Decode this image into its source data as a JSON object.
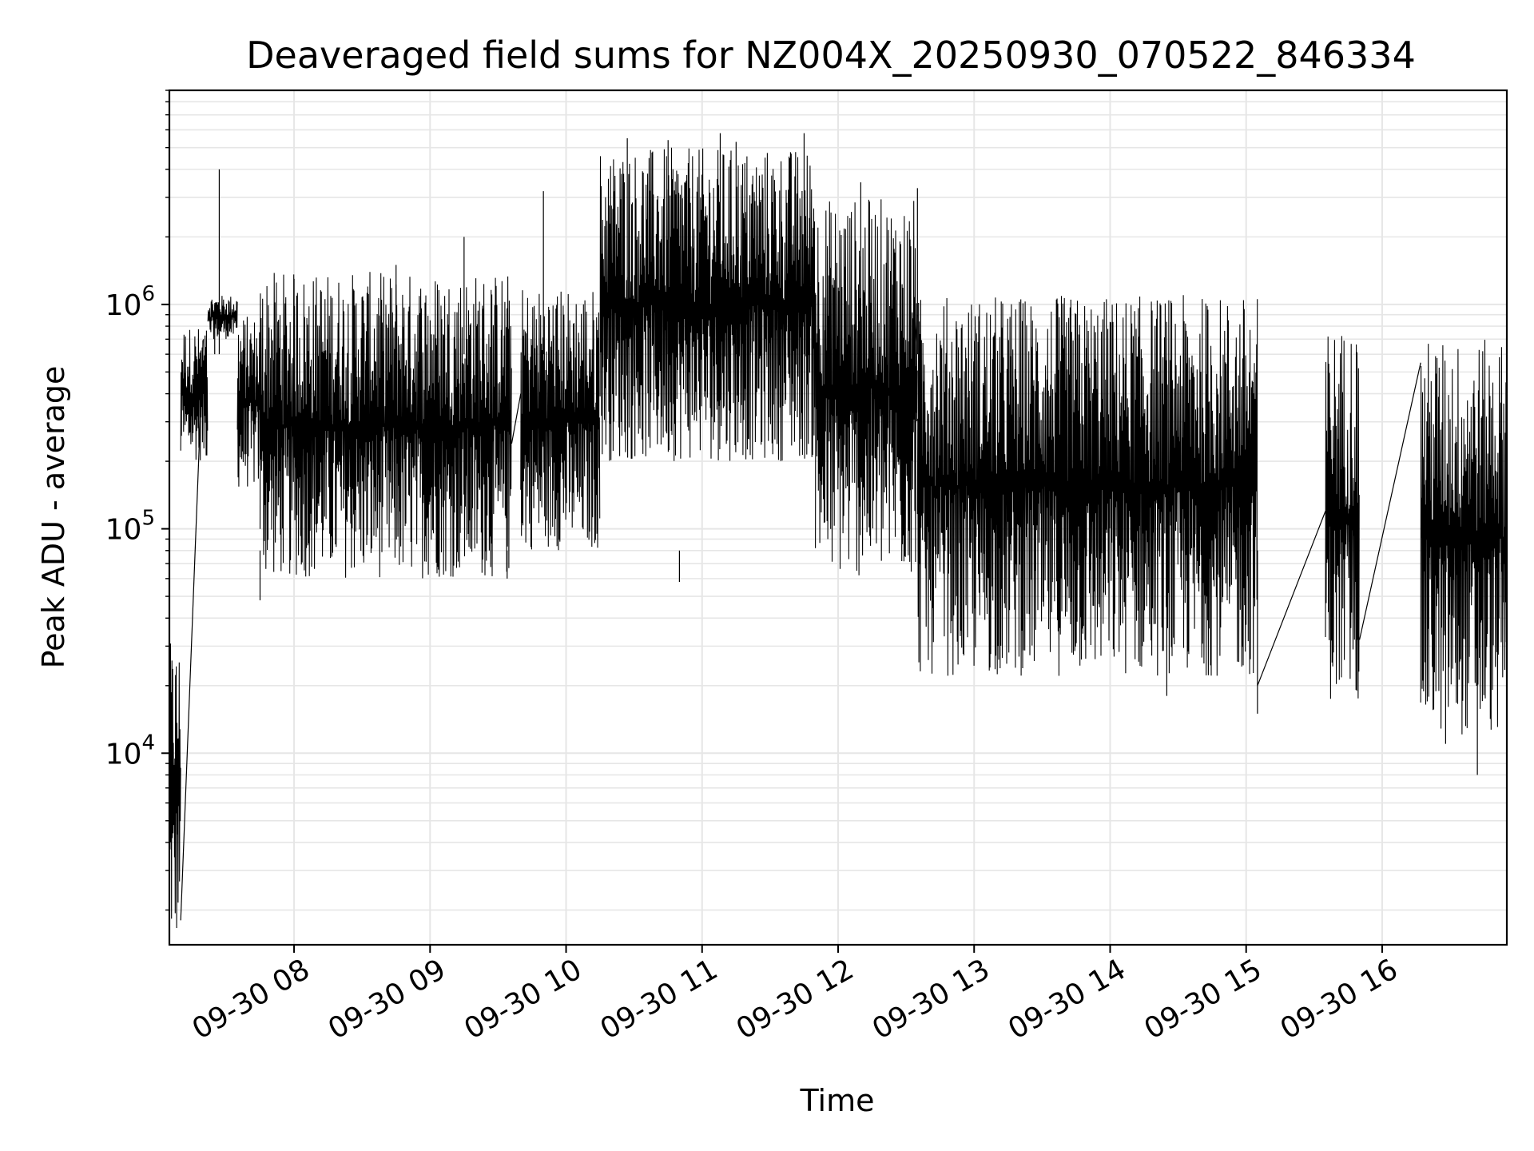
{
  "chart_data": {
    "type": "line",
    "title": "Deaveraged field sums for NZ004X_20250930_070522_846334",
    "xlabel": "Time",
    "ylabel": "Peak ADU - average",
    "y_scale": "log",
    "ylim": [
      1400,
      9000000
    ],
    "xlim": [
      "2025-09-30 07:05",
      "2025-09-30 16:55"
    ],
    "grid": true,
    "line_color": "#000000",
    "grid_color": "#e6e6e6",
    "x_ticks": [
      {
        "value": "2025-09-30 08:00",
        "label": "09-30 08"
      },
      {
        "value": "2025-09-30 09:00",
        "label": "09-30 09"
      },
      {
        "value": "2025-09-30 10:00",
        "label": "09-30 10"
      },
      {
        "value": "2025-09-30 11:00",
        "label": "09-30 11"
      },
      {
        "value": "2025-09-30 12:00",
        "label": "09-30 12"
      },
      {
        "value": "2025-09-30 13:00",
        "label": "09-30 13"
      },
      {
        "value": "2025-09-30 14:00",
        "label": "09-30 14"
      },
      {
        "value": "2025-09-30 15:00",
        "label": "09-30 15"
      },
      {
        "value": "2025-09-30 16:00",
        "label": "09-30 16"
      }
    ],
    "y_ticks": [
      {
        "value": 10000,
        "base": "10",
        "exp": "4"
      },
      {
        "value": 100000,
        "base": "10",
        "exp": "5"
      },
      {
        "value": 1000000,
        "base": "10",
        "exp": "6"
      }
    ],
    "segments": [
      {
        "start": "2025-09-30 07:05",
        "end": "2025-09-30 07:10",
        "low": 1400,
        "high": 31000
      },
      {
        "start": "2025-09-30 07:10",
        "end": "2025-09-30 07:22",
        "low": 200000,
        "high": 800000
      },
      {
        "start": "2025-09-30 07:22",
        "end": "2025-09-30 07:35",
        "low": 700000,
        "high": 1100000
      },
      {
        "start": "2025-09-30 07:35",
        "end": "2025-09-30 07:45",
        "low": 150000,
        "high": 900000
      },
      {
        "start": "2025-09-30 07:45",
        "end": "2025-09-30 09:36",
        "low": 60000,
        "high": 1400000
      },
      {
        "start": "2025-09-30 09:40",
        "end": "2025-09-30 10:15",
        "low": 80000,
        "high": 1200000
      },
      {
        "start": "2025-09-30 10:15",
        "end": "2025-09-30 11:50",
        "low": 200000,
        "high": 5000000
      },
      {
        "start": "2025-09-30 11:50",
        "end": "2025-09-30 12:35",
        "low": 60000,
        "high": 3000000
      },
      {
        "start": "2025-09-30 12:35",
        "end": "2025-09-30 15:05",
        "low": 22000,
        "high": 1100000
      },
      {
        "start": "2025-09-30 15:35",
        "end": "2025-09-30 15:50",
        "low": 17000,
        "high": 800000
      },
      {
        "start": "2025-09-30 16:17",
        "end": "2025-09-30 16:55",
        "low": 12000,
        "high": 700000
      }
    ],
    "bridges": [
      {
        "from": [
          "2025-09-30 07:10",
          1800
        ],
        "to": [
          "2025-09-30 07:20",
          700000
        ]
      },
      {
        "from": [
          "2025-09-30 09:36",
          240000
        ],
        "to": [
          "2025-09-30 09:40",
          400000
        ]
      },
      {
        "from": [
          "2025-09-30 12:30",
          230000
        ],
        "to": [
          "2025-09-30 12:35",
          900000
        ]
      },
      {
        "from": [
          "2025-09-30 15:05",
          20000
        ],
        "to": [
          "2025-09-30 15:35",
          120000
        ]
      },
      {
        "from": [
          "2025-09-30 15:50",
          32000
        ],
        "to": [
          "2025-09-30 16:17",
          550000
        ]
      }
    ],
    "spikes": [
      [
        "2025-09-30 07:27",
        4000000
      ],
      [
        "2025-09-30 07:25",
        1000000
      ],
      [
        "2025-09-30 08:00",
        1300000
      ],
      [
        "2025-09-30 08:45",
        1500000
      ],
      [
        "2025-09-30 09:15",
        2000000
      ],
      [
        "2025-09-30 09:50",
        3200000
      ],
      [
        "2025-09-30 10:27",
        5500000
      ],
      [
        "2025-09-30 10:45",
        5400000
      ],
      [
        "2025-09-30 11:08",
        5800000
      ],
      [
        "2025-09-30 11:15",
        5300000
      ],
      [
        "2025-09-30 11:45",
        5800000
      ],
      [
        "2025-09-30 12:10",
        3500000
      ],
      [
        "2025-09-30 12:35",
        3300000
      ],
      [
        "2025-09-30 09:34",
        60000
      ],
      [
        "2025-09-30 10:50",
        58000
      ],
      [
        "2025-09-30 07:45",
        48000
      ],
      [
        "2025-09-30 14:25",
        18000
      ],
      [
        "2025-09-30 15:05",
        15000
      ],
      [
        "2025-09-30 16:42",
        8000
      ],
      [
        "2025-09-30 16:28",
        11000
      ]
    ]
  }
}
